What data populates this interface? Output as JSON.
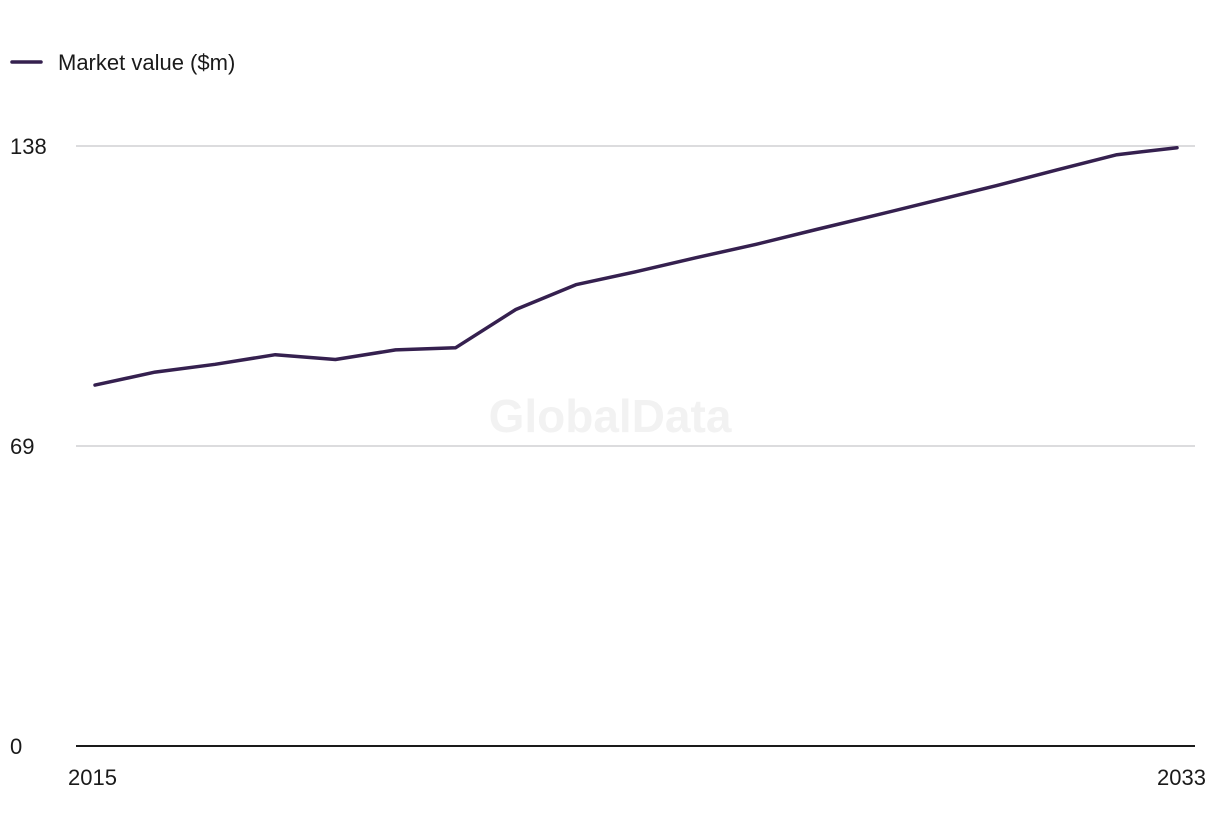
{
  "watermark": "GlobalData",
  "chart_data": {
    "type": "line",
    "title": "",
    "xlabel": "",
    "ylabel": "",
    "x": [
      2015,
      2016,
      2017,
      2018,
      2019,
      2020,
      2021,
      2022,
      2023,
      2024,
      2025,
      2026,
      2027,
      2028,
      2029,
      2030,
      2031,
      2032,
      2033
    ],
    "series": [
      {
        "name": "Market value ($m)",
        "color": "#35204f",
        "values": [
          83.0,
          86.0,
          87.8,
          90.0,
          88.9,
          91.1,
          91.6,
          100.4,
          106.1,
          109.1,
          112.3,
          115.4,
          118.8,
          122.1,
          125.5,
          128.9,
          132.5,
          136.0,
          137.6
        ]
      }
    ],
    "ylim": [
      0,
      138
    ],
    "yticks": [
      0,
      69,
      138
    ],
    "xtick_labels": [
      "2015",
      "2033"
    ],
    "grid": true,
    "legend_position": "top-left"
  }
}
